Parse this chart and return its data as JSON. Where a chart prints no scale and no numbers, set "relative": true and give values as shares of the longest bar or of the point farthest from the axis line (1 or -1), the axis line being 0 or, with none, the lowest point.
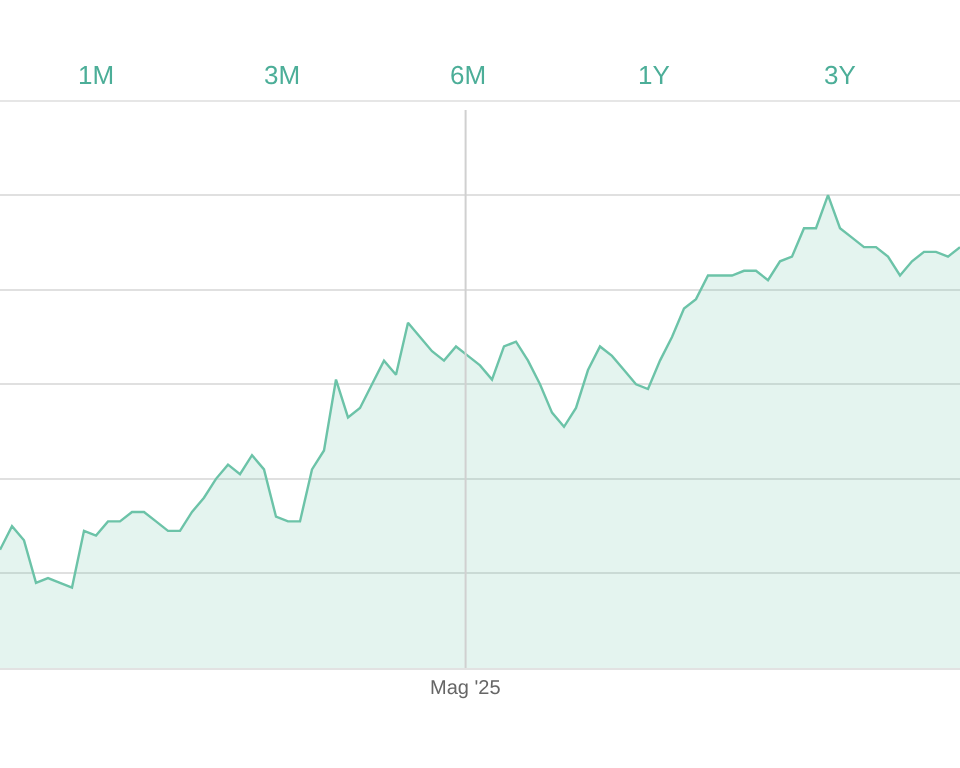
{
  "chart_data": {
    "type": "area",
    "relative": true,
    "annotations": [
      "1M",
      "3M",
      "6M",
      "1Y",
      "3Y"
    ],
    "xlabel": "Mag '25",
    "grid": true,
    "categories": [
      null,
      null,
      null,
      null,
      null,
      null,
      null,
      null,
      null,
      null,
      null,
      null,
      null,
      null,
      null,
      null,
      null,
      null,
      null,
      null,
      null,
      null,
      null,
      null,
      null,
      null,
      null,
      null,
      null,
      null,
      null,
      null,
      null,
      null,
      null,
      null,
      null,
      null,
      null,
      null,
      null,
      null,
      null,
      null,
      null,
      null,
      null,
      null,
      null,
      null,
      null,
      null,
      null,
      null,
      null,
      null,
      null,
      null,
      null,
      null,
      null,
      null,
      null,
      null,
      null,
      null,
      null,
      null,
      null,
      null,
      null,
      null,
      null,
      null,
      null,
      null,
      null,
      null,
      null,
      null,
      null
    ],
    "series": [
      {
        "color": "#6cc3a8",
        "values": [
          0.25,
          0.3,
          0.27,
          0.18,
          0.19,
          0.18,
          0.17,
          0.29,
          0.28,
          0.31,
          0.31,
          0.33,
          0.33,
          0.31,
          0.29,
          0.29,
          0.33,
          0.36,
          0.4,
          0.43,
          0.41,
          0.45,
          0.42,
          0.32,
          0.31,
          0.31,
          0.42,
          0.46,
          0.61,
          0.53,
          0.55,
          0.6,
          0.65,
          0.62,
          0.73,
          0.7,
          0.67,
          0.65,
          0.68,
          0.66,
          0.64,
          0.61,
          0.68,
          0.69,
          0.65,
          0.6,
          0.54,
          0.51,
          0.55,
          0.63,
          0.68,
          0.66,
          0.63,
          0.6,
          0.59,
          0.65,
          0.7,
          0.76,
          0.78,
          0.83,
          0.83,
          0.83,
          0.84,
          0.84,
          0.82,
          0.86,
          0.87,
          0.93,
          0.93,
          1,
          0.93,
          0.91,
          0.89,
          0.89,
          0.87,
          0.83,
          0.86,
          0.88,
          0.88,
          0.87,
          0.89
        ]
      }
    ]
  }
}
